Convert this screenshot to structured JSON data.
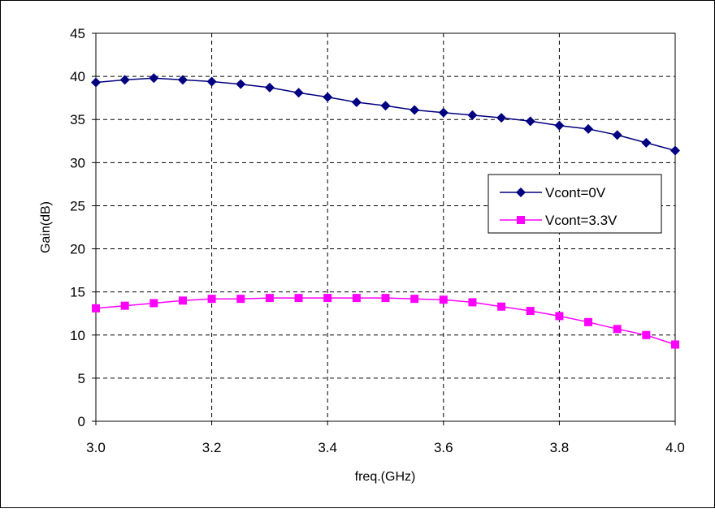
{
  "chart_data": {
    "type": "line",
    "xlabel": "freq.(GHz)",
    "ylabel": "Gain(dB)",
    "xlim": [
      3.0,
      4.0
    ],
    "ylim": [
      0,
      45
    ],
    "xticks": [
      3.0,
      3.2,
      3.4,
      3.6,
      3.8,
      4.0
    ],
    "xtick_labels": [
      "3.0",
      "3.2",
      "3.4",
      "3.6",
      "3.8",
      "4.0"
    ],
    "yticks": [
      0,
      5,
      10,
      15,
      20,
      25,
      30,
      35,
      40,
      45
    ],
    "ytick_labels": [
      "0",
      "5",
      "10",
      "15",
      "20",
      "25",
      "30",
      "35",
      "40",
      "45"
    ],
    "grid": true,
    "legend_position": "right",
    "x": [
      3.0,
      3.05,
      3.1,
      3.15,
      3.2,
      3.25,
      3.3,
      3.35,
      3.4,
      3.45,
      3.5,
      3.55,
      3.6,
      3.65,
      3.7,
      3.75,
      3.8,
      3.85,
      3.9,
      3.95,
      4.0
    ],
    "series": [
      {
        "name": "Vcont=0V",
        "color": "#000080",
        "marker": "diamond",
        "values": [
          39.3,
          39.6,
          39.8,
          39.6,
          39.4,
          39.1,
          38.7,
          38.1,
          37.6,
          37.0,
          36.6,
          36.1,
          35.8,
          35.5,
          35.2,
          34.8,
          34.3,
          33.9,
          33.2,
          32.3,
          31.4
        ]
      },
      {
        "name": "Vcont=3.3V",
        "color": "#ff00ff",
        "marker": "square",
        "values": [
          13.1,
          13.4,
          13.7,
          14.0,
          14.2,
          14.2,
          14.3,
          14.3,
          14.3,
          14.3,
          14.3,
          14.2,
          14.1,
          13.8,
          13.3,
          12.8,
          12.2,
          11.5,
          10.7,
          10.0,
          8.9
        ]
      }
    ]
  }
}
